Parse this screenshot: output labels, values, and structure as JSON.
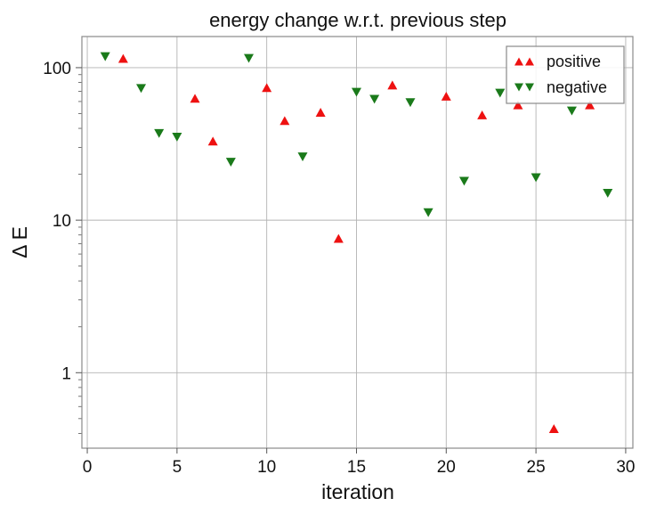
{
  "chart_data": {
    "type": "scatter",
    "title": "energy change w.r.t. previous step",
    "xlabel": "iteration",
    "ylabel": "Δ E",
    "xlim": [
      -0.3,
      30.4
    ],
    "ylim": [
      0.32,
      160
    ],
    "yscale": "log",
    "grid": true,
    "legend_placement": "top-right",
    "x_ticks": [
      0,
      5,
      10,
      15,
      20,
      25,
      30
    ],
    "x_tick_labels": [
      "0",
      "5",
      "10",
      "15",
      "20",
      "25",
      "30"
    ],
    "y_ticks": [
      1,
      10,
      100
    ],
    "y_tick_labels": [
      "1",
      "10",
      "100"
    ],
    "series": [
      {
        "name": "positive",
        "marker": "triangle-up",
        "color": "#ee1111",
        "x": [
          2,
          6,
          7,
          10,
          11,
          13,
          14,
          17,
          20,
          22,
          24,
          26,
          28
        ],
        "y": [
          115,
          63,
          33,
          74,
          45,
          51,
          7.6,
          77,
          65,
          49,
          57,
          0.43,
          57
        ]
      },
      {
        "name": "negative",
        "marker": "triangle-down",
        "color": "#1a7a1a",
        "x": [
          1,
          3,
          4,
          5,
          8,
          9,
          12,
          15,
          16,
          18,
          19,
          21,
          23,
          25,
          27,
          29
        ],
        "y": [
          118,
          73,
          37,
          35,
          24,
          115,
          26,
          69,
          62,
          59,
          11.2,
          18,
          68,
          19,
          52,
          15
        ]
      }
    ]
  }
}
